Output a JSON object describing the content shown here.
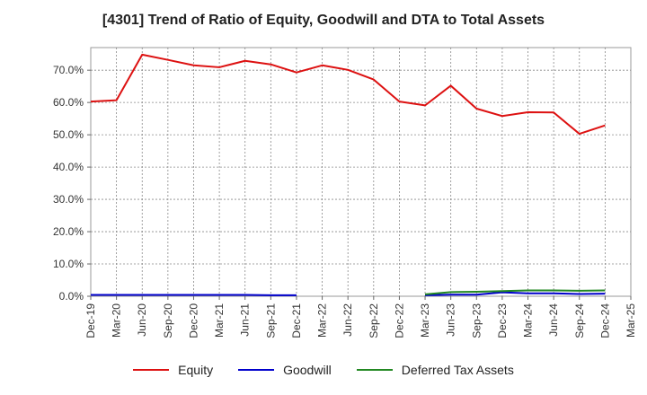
{
  "chart_data": {
    "type": "line",
    "title": "[4301]  Trend of Ratio of Equity, Goodwill and DTA to Total Assets",
    "xlabel": "",
    "ylabel": "",
    "x_ticks": [
      "Dec-19",
      "Mar-20",
      "Jun-20",
      "Sep-20",
      "Dec-20",
      "Mar-21",
      "Jun-21",
      "Sep-21",
      "Dec-21",
      "Mar-22",
      "Jun-22",
      "Sep-22",
      "Dec-22",
      "Mar-23",
      "Jun-23",
      "Sep-23",
      "Dec-23",
      "Mar-24",
      "Jun-24",
      "Sep-24",
      "Dec-24",
      "Mar-25"
    ],
    "y_ticks": [
      "0.0%",
      "10.0%",
      "20.0%",
      "30.0%",
      "40.0%",
      "50.0%",
      "60.0%",
      "70.0%"
    ],
    "ylim": [
      0,
      77
    ],
    "grid": true,
    "legend_position": "bottom",
    "series": [
      {
        "name": "Equity",
        "color": "#dd1111",
        "values": [
          60.3,
          60.7,
          74.8,
          73.2,
          71.5,
          70.9,
          72.9,
          71.8,
          69.3,
          71.5,
          70.1,
          67.1,
          60.3,
          59.1,
          65.2,
          58.1,
          55.8,
          57.0,
          56.9,
          50.3,
          52.9,
          null
        ]
      },
      {
        "name": "Goodwill",
        "color": "#0000cc",
        "values": [
          0.4,
          0.4,
          0.4,
          0.4,
          0.4,
          0.4,
          0.4,
          0.3,
          0.3,
          null,
          null,
          null,
          null,
          0.3,
          0.5,
          0.5,
          1.2,
          0.9,
          0.9,
          0.7,
          0.8,
          null
        ]
      },
      {
        "name": "Deferred Tax Assets",
        "color": "#228822",
        "values": [
          null,
          null,
          null,
          null,
          null,
          null,
          null,
          null,
          null,
          null,
          null,
          null,
          null,
          0.6,
          1.3,
          1.4,
          1.6,
          1.8,
          1.8,
          1.7,
          1.8,
          null
        ]
      }
    ]
  }
}
